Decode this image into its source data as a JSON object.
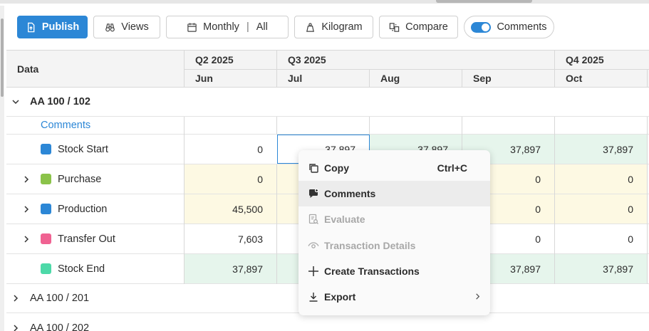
{
  "toolbar": {
    "publish_label": "Publish",
    "views_label": "Views",
    "period_label": "Monthly",
    "period_filter": "All",
    "unit_label": "Kilogram",
    "compare_label": "Compare",
    "comments_label": "Comments",
    "comments_toggle_on": true
  },
  "grid": {
    "data_header": "Data",
    "quarters": [
      "Q2 2025",
      "Q3 2025",
      "Q4 2025"
    ],
    "months": [
      "Jun",
      "Jul",
      "Aug",
      "Sep",
      "Oct"
    ],
    "groups": [
      {
        "label": "AA 100 / 102",
        "expanded": true
      },
      {
        "label": "AA 100 / 201",
        "expanded": false
      },
      {
        "label": "AA 100 / 202",
        "expanded": false
      }
    ],
    "comments_row_label": "Comments",
    "rows": [
      {
        "label": "Stock Start",
        "color": "#2c87d6",
        "expandable": false,
        "values": [
          "0",
          "37,897",
          "37,897",
          "37,897",
          "37,897"
        ]
      },
      {
        "label": "Purchase",
        "color": "#8bc34a",
        "expandable": true,
        "values": [
          "0",
          "",
          "",
          "0",
          "0"
        ]
      },
      {
        "label": "Production",
        "color": "#2c87d6",
        "expandable": true,
        "values": [
          "45,500",
          "",
          "",
          "0",
          "0"
        ]
      },
      {
        "label": "Transfer Out",
        "color": "#f06292",
        "expandable": true,
        "values": [
          "7,603",
          "",
          "",
          "0",
          "0"
        ]
      },
      {
        "label": "Stock End",
        "color": "#4dd9a8",
        "expandable": false,
        "values": [
          "37,897",
          "",
          "",
          "37,897",
          "37,897"
        ]
      }
    ]
  },
  "context_menu": {
    "items": [
      {
        "label": "Copy",
        "shortcut": "Ctrl+C",
        "icon": "copy-icon",
        "disabled": false
      },
      {
        "label": "Comments",
        "icon": "comment-icon",
        "disabled": false,
        "hover": true
      },
      {
        "label": "Evaluate",
        "icon": "evaluate-icon",
        "disabled": true
      },
      {
        "label": "Transaction Details",
        "icon": "eye-icon",
        "disabled": true
      },
      {
        "label": "Create Transactions",
        "icon": "plus-icon",
        "disabled": false
      },
      {
        "label": "Export",
        "icon": "download-icon",
        "disabled": false,
        "submenu": true
      }
    ]
  }
}
